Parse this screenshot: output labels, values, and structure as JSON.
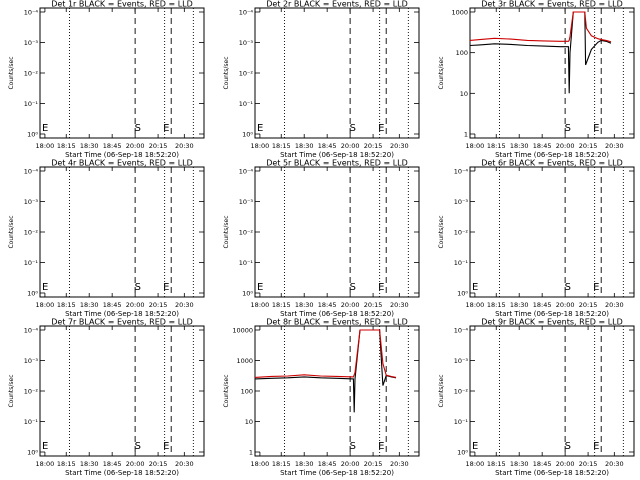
{
  "chart_data": [
    {
      "id": "1r",
      "type": "line",
      "title": "Det 1r BLACK = Events, RED = LLD",
      "xlabel": "Start Time (06-Sep-18 18:52:20)",
      "ylabel": "Counts/sec",
      "scale": "log",
      "ymax_exp": -4,
      "ytick_labels": [
        "10⁻⁴",
        "10⁻³",
        "10⁻²",
        "10⁻¹",
        "10⁰"
      ],
      "xtick_labels": [
        "18:00",
        "18:15",
        "18:30",
        "18:45",
        "20:00",
        "20:15",
        "20:30"
      ],
      "markers": [
        "S",
        "E"
      ],
      "side_mark": "E",
      "series": []
    },
    {
      "id": "2r",
      "type": "line",
      "title": "Det 2r BLACK = Events, RED = LLD",
      "xlabel": "Start Time (06-Sep-18 18:52:20)",
      "ylabel": "Counts/sec",
      "scale": "log",
      "ymax_exp": -4,
      "ytick_labels": [
        "10⁻⁴",
        "10⁻³",
        "10⁻²",
        "10⁻¹",
        "10⁰"
      ],
      "xtick_labels": [
        "18:00",
        "18:15",
        "18:30",
        "18:45",
        "20:00",
        "20:15",
        "20:30"
      ],
      "markers": [
        "S",
        "E"
      ],
      "side_mark": "E",
      "series": []
    },
    {
      "id": "3r",
      "type": "line",
      "title": "Det 3r BLACK = Events, RED = LLD",
      "xlabel": "Start Time (06-Sep-18 18:52:20)",
      "ylabel": "Counts/sec",
      "scale": "log",
      "ymax_exp": 3,
      "ytick_labels": [
        "1000",
        "100",
        "10",
        "1"
      ],
      "xtick_labels": [
        "18:00",
        "18:15",
        "18:30",
        "18:45",
        "20:00",
        "20:15",
        "20:30"
      ],
      "markers": [
        "S",
        "E"
      ],
      "side_mark": "",
      "series": [
        {
          "color": "#000000",
          "x": [
            0,
            0.06,
            0.15,
            0.25,
            0.35,
            0.45,
            0.55,
            0.6,
            0.605,
            0.61,
            0.63,
            0.66,
            0.685,
            0.7,
            0.705,
            0.74,
            0.78,
            0.8,
            0.83,
            0.86
          ],
          "y": [
            150,
            155,
            165,
            160,
            150,
            145,
            140,
            140,
            10,
            100,
            1000,
            1000,
            1000,
            1000,
            50,
            120,
            180,
            200,
            190,
            170
          ]
        },
        {
          "color": "#cc0000",
          "x": [
            0,
            0.06,
            0.15,
            0.25,
            0.35,
            0.45,
            0.55,
            0.6,
            0.605,
            0.61,
            0.63,
            0.66,
            0.685,
            0.7,
            0.71,
            0.74,
            0.78,
            0.8,
            0.83,
            0.86
          ],
          "y": [
            200,
            210,
            225,
            215,
            200,
            195,
            190,
            190,
            200,
            250,
            1000,
            1000,
            1000,
            1000,
            400,
            260,
            220,
            210,
            200,
            185
          ]
        }
      ]
    },
    {
      "id": "4r",
      "type": "line",
      "title": "Det 4r BLACK = Events, RED = LLD",
      "xlabel": "Start Time (06-Sep-18 18:52:20)",
      "ylabel": "Counts/sec",
      "scale": "log",
      "ymax_exp": -4,
      "ytick_labels": [
        "10⁻⁴",
        "10⁻³",
        "10⁻²",
        "10⁻¹",
        "10⁰"
      ],
      "xtick_labels": [
        "18:00",
        "18:15",
        "18:30",
        "18:45",
        "20:00",
        "20:15",
        "20:30"
      ],
      "markers": [
        "S",
        "E"
      ],
      "side_mark": "E",
      "series": []
    },
    {
      "id": "5r",
      "type": "line",
      "title": "Det 5r BLACK = Events, RED = LLD",
      "xlabel": "Start Time (06-Sep-18 18:52:20)",
      "ylabel": "Counts/sec",
      "scale": "log",
      "ymax_exp": -4,
      "ytick_labels": [
        "10⁻⁴",
        "10⁻³",
        "10⁻²",
        "10⁻¹",
        "10⁰"
      ],
      "xtick_labels": [
        "18:00",
        "18:15",
        "18:30",
        "18:45",
        "20:00",
        "20:15",
        "20:30"
      ],
      "markers": [
        "S",
        "E"
      ],
      "side_mark": "E",
      "series": []
    },
    {
      "id": "6r",
      "type": "line",
      "title": "Det 6r BLACK = Events, RED = LLD",
      "xlabel": "Start Time (06-Sep-18 18:52:20)",
      "ylabel": "Counts/sec",
      "scale": "log",
      "ymax_exp": -4,
      "ytick_labels": [
        "10⁻⁴",
        "10⁻³",
        "10⁻²",
        "10⁻¹",
        "10⁰"
      ],
      "xtick_labels": [
        "18:00",
        "18:15",
        "18:30",
        "18:45",
        "20:00",
        "20:15",
        "20:30"
      ],
      "markers": [
        "S",
        "E"
      ],
      "side_mark": "E",
      "series": []
    },
    {
      "id": "7r",
      "type": "line",
      "title": "Det 7r BLACK = Events, RED = LLD",
      "xlabel": "Start Time (06-Sep-18 18:52:20)",
      "ylabel": "Counts/sec",
      "scale": "log",
      "ymax_exp": -4,
      "ytick_labels": [
        "10⁻⁴",
        "10⁻³",
        "10⁻²",
        "10⁻¹",
        "10⁰"
      ],
      "xtick_labels": [
        "18:00",
        "18:15",
        "18:30",
        "18:45",
        "20:00",
        "20:15",
        "20:30"
      ],
      "markers": [
        "S",
        "E"
      ],
      "side_mark": "E",
      "series": []
    },
    {
      "id": "8r",
      "type": "line",
      "title": "Det 8r BLACK = Events, RED = LLD",
      "xlabel": "Start Time (06-Sep-18 18:52:20)",
      "ylabel": "Counts/sec",
      "scale": "log",
      "ymax_exp": 4,
      "ytick_labels": [
        "10000",
        "1000",
        "100",
        "10",
        "1"
      ],
      "xtick_labels": [
        "18:00",
        "18:15",
        "18:30",
        "18:45",
        "20:00",
        "20:15",
        "20:30"
      ],
      "markers": [
        "S",
        "E"
      ],
      "side_mark": "",
      "series": [
        {
          "color": "#000000",
          "x": [
            0,
            0.1,
            0.2,
            0.3,
            0.4,
            0.5,
            0.6,
            0.605,
            0.61,
            0.64,
            0.68,
            0.7,
            0.72,
            0.76,
            0.78,
            0.8,
            0.83,
            0.86
          ],
          "y": [
            250,
            260,
            270,
            290,
            270,
            260,
            250,
            20,
            250,
            10000,
            10000,
            10000,
            10000,
            10000,
            150,
            320,
            290,
            270
          ]
        },
        {
          "color": "#cc0000",
          "x": [
            0,
            0.1,
            0.2,
            0.3,
            0.4,
            0.5,
            0.6,
            0.61,
            0.64,
            0.68,
            0.7,
            0.72,
            0.76,
            0.78,
            0.8,
            0.83,
            0.86
          ],
          "y": [
            280,
            300,
            310,
            340,
            310,
            300,
            290,
            400,
            10000,
            10000,
            10000,
            10000,
            10000,
            800,
            330,
            300,
            280
          ]
        }
      ]
    },
    {
      "id": "9r",
      "type": "line",
      "title": "Det 9r BLACK = Events, RED = LLD",
      "xlabel": "Start Time (06-Sep-18 18:52:20)",
      "ylabel": "Counts/sec",
      "scale": "log",
      "ymax_exp": -4,
      "ytick_labels": [
        "10⁻⁴",
        "10⁻³",
        "10⁻²",
        "10⁻¹",
        "10⁰"
      ],
      "xtick_labels": [
        "18:00",
        "18:15",
        "18:30",
        "18:45",
        "20:00",
        "20:15",
        "20:30"
      ],
      "markers": [
        "S",
        "E"
      ],
      "side_mark": "E",
      "series": []
    }
  ]
}
